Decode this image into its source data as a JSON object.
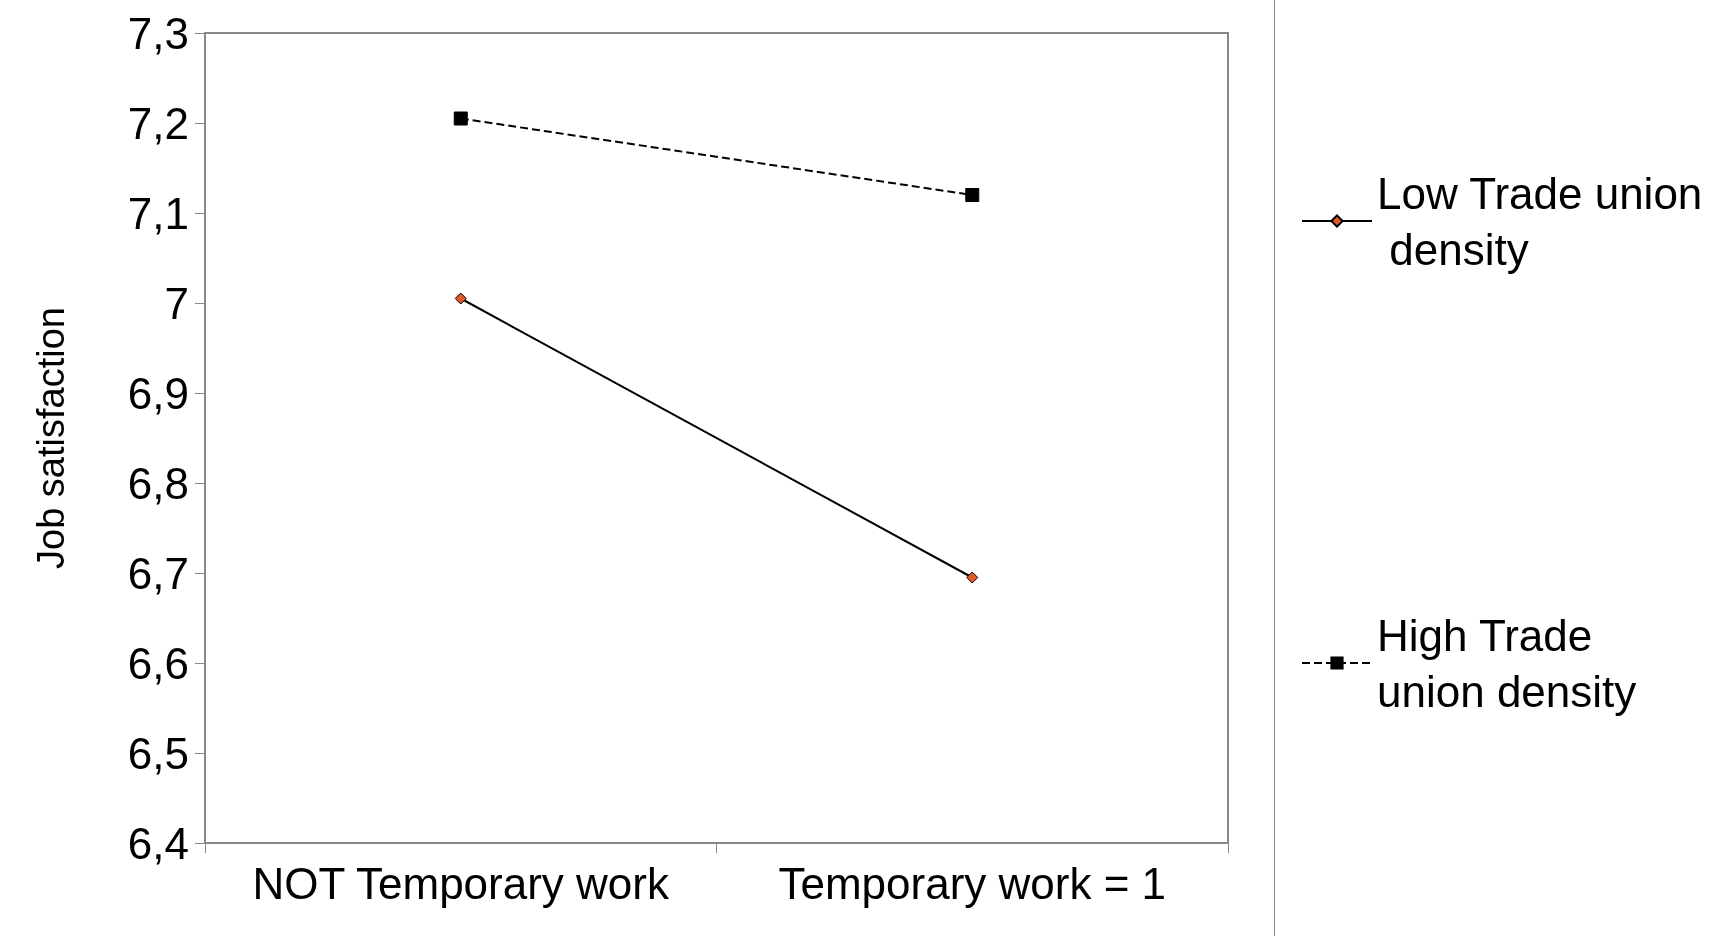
{
  "chart_data": {
    "type": "line",
    "ylabel": "Job satisfaction",
    "categories": [
      "NOT Temporary work",
      "Temporary work = 1"
    ],
    "series": [
      {
        "name": "Low Trade union density",
        "color": "#e35a2a",
        "values": [
          7.005,
          6.695
        ],
        "marker": "diamond",
        "line_style": "solid"
      },
      {
        "name": "High Trade union density",
        "color": "#000000",
        "values": [
          7.205,
          7.12
        ],
        "marker": "square",
        "line_style": "dashed"
      }
    ],
    "ylim": [
      6.4,
      7.3
    ],
    "yticks": [
      {
        "value": 6.4,
        "label": "6,4"
      },
      {
        "value": 6.5,
        "label": "6,5"
      },
      {
        "value": 6.6,
        "label": "6,6"
      },
      {
        "value": 6.7,
        "label": "6,7"
      },
      {
        "value": 6.8,
        "label": "6,8"
      },
      {
        "value": 6.9,
        "label": "6,9"
      },
      7,
      {
        "value": 7.1,
        "label": "7,1"
      },
      {
        "value": 7.2,
        "label": "7,2"
      },
      {
        "value": 7.3,
        "label": "7,3"
      }
    ],
    "grid": false,
    "legend": "right"
  }
}
